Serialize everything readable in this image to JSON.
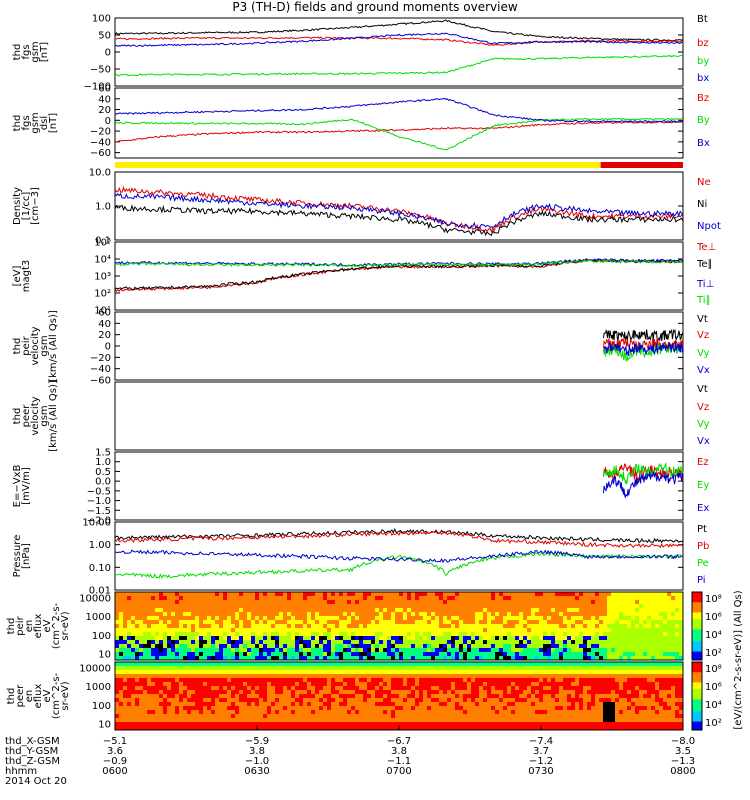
{
  "title": "P3 (TH-D) fields and ground moments overview",
  "colors": {
    "black": "#000000",
    "red": "#e00000",
    "green": "#00dd00",
    "blue": "#0000cc",
    "yellow": "#ffee00"
  },
  "status_bar": {
    "split_fraction": 0.855,
    "segments": [
      "yellow",
      "red"
    ]
  },
  "chart_data": [
    {
      "type": "line",
      "ylabel": [
        "thd",
        "fgs",
        "gsm",
        "[nT]"
      ],
      "ylim": [
        -100,
        100
      ],
      "ticks": [
        "100",
        "50",
        "0",
        "−50",
        "−100"
      ],
      "tick_values": [
        100,
        50,
        0,
        -50,
        -100
      ],
      "series": [
        {
          "name": "Bt",
          "color": "black",
          "y": [
            54,
            55,
            57,
            58,
            64,
            72,
            82,
            92,
            60,
            45,
            40,
            36,
            35
          ]
        },
        {
          "name": "bz",
          "color": "red",
          "y": [
            38,
            40,
            41,
            41,
            42,
            41,
            40,
            36,
            20,
            30,
            32,
            32,
            32
          ]
        },
        {
          "name": "by",
          "color": "green",
          "y": [
            -68,
            -66,
            -66,
            -65,
            -64,
            -64,
            -62,
            -60,
            -20,
            -20,
            -16,
            -14,
            -12
          ]
        },
        {
          "name": "bx",
          "color": "blue",
          "y": [
            18,
            20,
            22,
            26,
            32,
            40,
            50,
            55,
            25,
            30,
            30,
            28,
            26
          ]
        }
      ]
    },
    {
      "type": "line",
      "ylabel": [
        "thd",
        "fgs",
        "gsm",
        "dsl",
        "[nT]"
      ],
      "ylim": [
        -70,
        60
      ],
      "ticks": [
        "60",
        "40",
        "20",
        "0",
        "−20",
        "−40",
        "−60"
      ],
      "tick_values": [
        60,
        40,
        20,
        0,
        -20,
        -40,
        -60
      ],
      "series": [
        {
          "name": "Bz",
          "color": "red",
          "y": [
            -40,
            -30,
            -25,
            -22,
            -22,
            -20,
            -18,
            -15,
            -15,
            -8,
            -5,
            -4,
            -3
          ]
        },
        {
          "name": "By",
          "color": "green",
          "y": [
            -5,
            -5,
            -6,
            -6,
            -7,
            2,
            -30,
            -55,
            -10,
            0,
            2,
            2,
            2
          ]
        },
        {
          "name": "Bx",
          "color": "blue",
          "y": [
            12,
            14,
            16,
            18,
            20,
            26,
            34,
            40,
            10,
            0,
            -2,
            -2,
            -2
          ]
        }
      ]
    },
    {
      "type": "line",
      "ylabel": [
        "Density",
        "[1/cc]",
        "[cm−3]"
      ],
      "ylim": [
        0.1,
        10
      ],
      "scale": "log",
      "ticks": [
        "10.0",
        "1.0",
        "0.1"
      ],
      "tick_values": [
        10,
        1,
        0.1
      ],
      "series": [
        {
          "name": "Ne",
          "color": "red",
          "y": [
            3.0,
            2.5,
            2.0,
            1.5,
            1.2,
            1.0,
            0.7,
            0.3,
            0.2,
            0.8,
            0.5,
            0.5,
            0.5
          ]
        },
        {
          "name": "Ni",
          "color": "black",
          "y": [
            0.9,
            0.8,
            0.7,
            0.7,
            0.6,
            0.5,
            0.4,
            0.2,
            0.15,
            0.6,
            0.4,
            0.4,
            0.4
          ]
        },
        {
          "name": "Npot",
          "color": "blue",
          "y": [
            2.0,
            1.8,
            1.5,
            1.2,
            1.0,
            0.9,
            0.6,
            0.3,
            0.25,
            1.0,
            0.7,
            0.6,
            0.6
          ]
        }
      ]
    },
    {
      "type": "line",
      "ylabel": [
        "[eV]",
        "magt3"
      ],
      "ylim": [
        10,
        100000
      ],
      "scale": "log",
      "ticks": [
        "10⁵",
        "10⁴",
        "10³",
        "10²",
        "10¹"
      ],
      "tick_values": [
        100000,
        10000,
        1000,
        100,
        10
      ],
      "series": [
        {
          "name": "Te⊥",
          "color": "red",
          "y": [
            150,
            180,
            220,
            400,
            1200,
            2500,
            3500,
            3500,
            4000,
            3500,
            8000,
            7000,
            7000
          ]
        },
        {
          "name": "Te∥",
          "color": "black",
          "y": [
            180,
            200,
            250,
            450,
            1300,
            2600,
            3800,
            3600,
            4200,
            3800,
            8500,
            7500,
            7500
          ]
        },
        {
          "name": "Ti⊥",
          "color": "blue",
          "y": [
            6000,
            6000,
            5500,
            5000,
            5000,
            4500,
            5000,
            5500,
            5000,
            5500,
            9000,
            8000,
            8000
          ]
        },
        {
          "name": "Ti∥",
          "color": "green",
          "y": [
            5000,
            5000,
            4500,
            4500,
            4500,
            4000,
            4500,
            5000,
            4500,
            5000,
            8000,
            7000,
            7000
          ]
        }
      ]
    },
    {
      "type": "line",
      "ylabel": [
        "thd",
        "peir",
        "velocity",
        "gsm",
        "[km/s (All Qs)]"
      ],
      "ylim": [
        -60,
        60
      ],
      "ticks": [
        "60",
        "40",
        "20",
        "0",
        "−20",
        "−40",
        "−60"
      ],
      "tick_values": [
        60,
        40,
        20,
        0,
        -20,
        -40,
        -60
      ],
      "x_start_fraction": 0.86,
      "series": [
        {
          "name": "Vt",
          "color": "black",
          "y": [
            18,
            20,
            16,
            22,
            19,
            17,
            20,
            18
          ]
        },
        {
          "name": "Vz",
          "color": "red",
          "y": [
            5,
            2,
            8,
            -3,
            6,
            4,
            0,
            3
          ]
        },
        {
          "name": "Vy",
          "color": "green",
          "y": [
            -10,
            -5,
            -20,
            -8,
            -12,
            -6,
            -4,
            -8
          ]
        },
        {
          "name": "Vx",
          "color": "blue",
          "y": [
            -5,
            0,
            -10,
            -2,
            -6,
            -3,
            -1,
            -4
          ]
        }
      ]
    },
    {
      "type": "line",
      "ylabel": [
        "thd",
        "peer",
        "velocity",
        "gsm",
        "[km/s (All Qs)]"
      ],
      "legend": [
        "Vt",
        "Vz",
        "Vy",
        "Vx"
      ],
      "legend_colors": [
        "black",
        "red",
        "green",
        "blue"
      ],
      "series": []
    },
    {
      "type": "line",
      "ylabel": [
        "E=−VxB",
        "[mV/m]"
      ],
      "ylim": [
        -2,
        1.5
      ],
      "ticks": [
        "1.5",
        "1.0",
        "0.5",
        "0.0",
        "−0.5",
        "−1.0",
        "−1.5",
        "−2.0"
      ],
      "tick_values": [
        1.5,
        1.0,
        0.5,
        0.0,
        -0.5,
        -1.0,
        -1.5,
        -2.0
      ],
      "x_start_fraction": 0.86,
      "series": [
        {
          "name": "Ez",
          "color": "red",
          "y": [
            0.5,
            0.3,
            0.8,
            0.2,
            0.6,
            0.4,
            0.5,
            0.3
          ]
        },
        {
          "name": "Ey",
          "color": "green",
          "y": [
            0.3,
            0.6,
            0.1,
            0.7,
            0.4,
            0.8,
            0.5,
            0.6
          ]
        },
        {
          "name": "Ex",
          "color": "blue",
          "y": [
            -0.4,
            0.1,
            -0.6,
            0.0,
            0.2,
            0.3,
            0.1,
            0.2
          ]
        }
      ]
    },
    {
      "type": "line",
      "ylabel": [
        "Pressure",
        "[nPa]"
      ],
      "ylim": [
        0.01,
        10
      ],
      "scale": "log",
      "ticks": [
        "10.00",
        "1.00",
        "0.10",
        "0.01"
      ],
      "tick_values": [
        10,
        1,
        0.1,
        0.01
      ],
      "series": [
        {
          "name": "Pt",
          "color": "black",
          "y": [
            2.0,
            2.2,
            2.4,
            2.6,
            3.0,
            3.5,
            4.0,
            3.6,
            2.5,
            2.0,
            1.7,
            1.5,
            1.5
          ]
        },
        {
          "name": "Pb",
          "color": "red",
          "y": [
            1.5,
            1.7,
            1.9,
            2.1,
            2.4,
            2.8,
            3.2,
            3.4,
            1.5,
            1.3,
            1.0,
            0.9,
            0.9
          ]
        },
        {
          "name": "Pe",
          "color": "green",
          "y": [
            0.05,
            0.04,
            0.05,
            0.06,
            0.07,
            0.08,
            0.3,
            0.05,
            0.25,
            0.4,
            0.3,
            0.3,
            0.3
          ]
        },
        {
          "name": "Pi",
          "color": "blue",
          "y": [
            0.5,
            0.45,
            0.4,
            0.35,
            0.3,
            0.25,
            0.22,
            0.2,
            0.3,
            0.5,
            0.3,
            0.3,
            0.3
          ]
        }
      ]
    },
    {
      "type": "heatmap",
      "ylabel": [
        "thd",
        "peir",
        "en",
        "eflux",
        "eV",
        "(cm^2-s-",
        "sr-eV)"
      ],
      "ticks": [
        "10000",
        "1000",
        "100",
        "10"
      ],
      "colorbar_ticks": [
        "10⁸",
        "10⁶",
        "10⁴",
        "10²"
      ],
      "colorbar_label": "[eV/(cm^2-s-sr-eV)] (All Qs)"
    },
    {
      "type": "heatmap",
      "ylabel": [
        "thd",
        "peer",
        "en",
        "eflux",
        "eV",
        "(cm^2-s-",
        "sr-eV)"
      ],
      "ticks": [
        "10000",
        "1000",
        "100",
        "10"
      ],
      "colorbar_ticks": [
        "10⁸",
        "10⁶",
        "10⁴",
        "10²"
      ]
    }
  ],
  "x_axis": {
    "row_labels": [
      "thd_X-GSM",
      "thd_Y-GSM",
      "thd_Z-GSM",
      "hhmm",
      "2014 Oct 20"
    ],
    "columns": [
      {
        "x": "−5.1",
        "y": "3.6",
        "z": "−0.9",
        "t": "0600"
      },
      {
        "x": "−5.9",
        "y": "3.8",
        "z": "−1.0",
        "t": "0630"
      },
      {
        "x": "−6.7",
        "y": "3.8",
        "z": "−1.1",
        "t": "0700"
      },
      {
        "x": "−7.4",
        "y": "3.7",
        "z": "−1.2",
        "t": "0730"
      },
      {
        "x": "−8.0",
        "y": "3.5",
        "z": "−1.3",
        "t": "0800"
      }
    ]
  }
}
